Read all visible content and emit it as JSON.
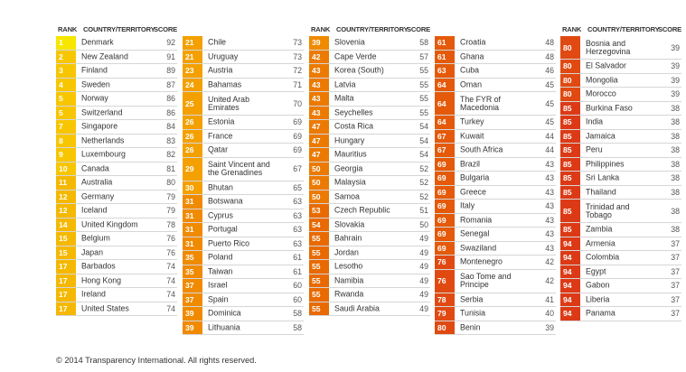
{
  "headers": {
    "rank": "RANK",
    "country": "COUNTRY/TERRITORY",
    "score": "SCORE"
  },
  "colors": {
    "rank_1": "#f6e600",
    "rank_2_10": "#f7c600",
    "rank_11_20": "#f5b800",
    "rank_21_30": "#f3a000",
    "rank_31_40": "#f08a00",
    "rank_41_50": "#ec7a00",
    "rank_51_60": "#e86a00",
    "rank_61_70": "#e45a0a",
    "rank_71_80": "#e04a12",
    "rank_81_94": "#dc3a16"
  },
  "columns": [
    {
      "rows": [
        {
          "rank": "1",
          "country": "Denmark",
          "score": "92"
        },
        {
          "rank": "2",
          "country": "New Zealand",
          "score": "91"
        },
        {
          "rank": "3",
          "country": "Finland",
          "score": "89"
        },
        {
          "rank": "4",
          "country": "Sweden",
          "score": "87"
        },
        {
          "rank": "5",
          "country": "Norway",
          "score": "86"
        },
        {
          "rank": "5",
          "country": "Switzerland",
          "score": "86"
        },
        {
          "rank": "7",
          "country": "Singapore",
          "score": "84"
        },
        {
          "rank": "8",
          "country": "Netherlands",
          "score": "83"
        },
        {
          "rank": "9",
          "country": "Luxembourg",
          "score": "82"
        },
        {
          "rank": "10",
          "country": "Canada",
          "score": "81"
        },
        {
          "rank": "11",
          "country": "Australia",
          "score": "80"
        },
        {
          "rank": "12",
          "country": "Germany",
          "score": "79"
        },
        {
          "rank": "12",
          "country": "Iceland",
          "score": "79"
        },
        {
          "rank": "14",
          "country": "United Kingdom",
          "score": "78"
        },
        {
          "rank": "15",
          "country": "Belgium",
          "score": "76"
        },
        {
          "rank": "15",
          "country": "Japan",
          "score": "76"
        },
        {
          "rank": "17",
          "country": "Barbados",
          "score": "74"
        },
        {
          "rank": "17",
          "country": "Hong Kong",
          "score": "74"
        },
        {
          "rank": "17",
          "country": "Ireland",
          "score": "74"
        },
        {
          "rank": "17",
          "country": "United States",
          "score": "74"
        }
      ]
    },
    {
      "rows": [
        {
          "rank": "21",
          "country": "Chile",
          "score": "73"
        },
        {
          "rank": "21",
          "country": "Uruguay",
          "score": "73"
        },
        {
          "rank": "23",
          "country": "Austria",
          "score": "72"
        },
        {
          "rank": "24",
          "country": "Bahamas",
          "score": "71"
        },
        {
          "rank": "25",
          "country": "United Arab Emirates",
          "score": "70"
        },
        {
          "rank": "26",
          "country": "Estonia",
          "score": "69"
        },
        {
          "rank": "26",
          "country": "France",
          "score": "69"
        },
        {
          "rank": "26",
          "country": "Qatar",
          "score": "69"
        },
        {
          "rank": "29",
          "country": "Saint Vincent and the Grenadines",
          "score": "67"
        },
        {
          "rank": "30",
          "country": "Bhutan",
          "score": "65"
        },
        {
          "rank": "31",
          "country": "Botswana",
          "score": "63"
        },
        {
          "rank": "31",
          "country": "Cyprus",
          "score": "63"
        },
        {
          "rank": "31",
          "country": "Portugal",
          "score": "63"
        },
        {
          "rank": "31",
          "country": "Puerto Rico",
          "score": "63"
        },
        {
          "rank": "35",
          "country": "Poland",
          "score": "61"
        },
        {
          "rank": "35",
          "country": "Taiwan",
          "score": "61"
        },
        {
          "rank": "37",
          "country": "Israel",
          "score": "60"
        },
        {
          "rank": "37",
          "country": "Spain",
          "score": "60"
        },
        {
          "rank": "39",
          "country": "Dominica",
          "score": "58"
        },
        {
          "rank": "39",
          "country": "Lithuania",
          "score": "58"
        }
      ]
    },
    {
      "rows": [
        {
          "rank": "39",
          "country": "Slovenia",
          "score": "58"
        },
        {
          "rank": "42",
          "country": "Cape Verde",
          "score": "57"
        },
        {
          "rank": "43",
          "country": "Korea (South)",
          "score": "55"
        },
        {
          "rank": "43",
          "country": "Latvia",
          "score": "55"
        },
        {
          "rank": "43",
          "country": "Malta",
          "score": "55"
        },
        {
          "rank": "43",
          "country": "Seychelles",
          "score": "55"
        },
        {
          "rank": "47",
          "country": "Costa Rica",
          "score": "54"
        },
        {
          "rank": "47",
          "country": "Hungary",
          "score": "54"
        },
        {
          "rank": "47",
          "country": "Mauritius",
          "score": "54"
        },
        {
          "rank": "50",
          "country": "Georgia",
          "score": "52"
        },
        {
          "rank": "50",
          "country": "Malaysia",
          "score": "52"
        },
        {
          "rank": "50",
          "country": "Samoa",
          "score": "52"
        },
        {
          "rank": "53",
          "country": "Czech Republic",
          "score": "51"
        },
        {
          "rank": "54",
          "country": "Slovakia",
          "score": "50"
        },
        {
          "rank": "55",
          "country": "Bahrain",
          "score": "49"
        },
        {
          "rank": "55",
          "country": "Jordan",
          "score": "49"
        },
        {
          "rank": "55",
          "country": "Lesotho",
          "score": "49"
        },
        {
          "rank": "55",
          "country": "Namibia",
          "score": "49"
        },
        {
          "rank": "55",
          "country": "Rwanda",
          "score": "49"
        },
        {
          "rank": "55",
          "country": "Saudi Arabia",
          "score": "49"
        }
      ]
    },
    {
      "rows": [
        {
          "rank": "61",
          "country": "Croatia",
          "score": "48"
        },
        {
          "rank": "61",
          "country": "Ghana",
          "score": "48"
        },
        {
          "rank": "63",
          "country": "Cuba",
          "score": "46"
        },
        {
          "rank": "64",
          "country": "Oman",
          "score": "45"
        },
        {
          "rank": "64",
          "country": "The FYR of Macedonia",
          "score": "45"
        },
        {
          "rank": "64",
          "country": "Turkey",
          "score": "45"
        },
        {
          "rank": "67",
          "country": "Kuwait",
          "score": "44"
        },
        {
          "rank": "67",
          "country": "South Africa",
          "score": "44"
        },
        {
          "rank": "69",
          "country": "Brazil",
          "score": "43"
        },
        {
          "rank": "69",
          "country": "Bulgaria",
          "score": "43"
        },
        {
          "rank": "69",
          "country": "Greece",
          "score": "43"
        },
        {
          "rank": "69",
          "country": "Italy",
          "score": "43"
        },
        {
          "rank": "69",
          "country": "Romania",
          "score": "43"
        },
        {
          "rank": "69",
          "country": "Senegal",
          "score": "43"
        },
        {
          "rank": "69",
          "country": "Swaziland",
          "score": "43"
        },
        {
          "rank": "76",
          "country": "Montenegro",
          "score": "42"
        },
        {
          "rank": "76",
          "country": "Sao Tome and Principe",
          "score": "42"
        },
        {
          "rank": "78",
          "country": "Serbia",
          "score": "41"
        },
        {
          "rank": "79",
          "country": "Tunisia",
          "score": "40"
        },
        {
          "rank": "80",
          "country": "Benin",
          "score": "39"
        }
      ]
    },
    {
      "rows": [
        {
          "rank": "80",
          "country": "Bosnia and Herzegovina",
          "score": "39"
        },
        {
          "rank": "80",
          "country": "El Salvador",
          "score": "39"
        },
        {
          "rank": "80",
          "country": "Mongolia",
          "score": "39"
        },
        {
          "rank": "80",
          "country": "Morocco",
          "score": "39"
        },
        {
          "rank": "85",
          "country": "Burkina Faso",
          "score": "38"
        },
        {
          "rank": "85",
          "country": "India",
          "score": "38"
        },
        {
          "rank": "85",
          "country": "Jamaica",
          "score": "38"
        },
        {
          "rank": "85",
          "country": "Peru",
          "score": "38"
        },
        {
          "rank": "85",
          "country": "Philippines",
          "score": "38"
        },
        {
          "rank": "85",
          "country": "Sri Lanka",
          "score": "38"
        },
        {
          "rank": "85",
          "country": "Thailand",
          "score": "38"
        },
        {
          "rank": "85",
          "country": "Trinidad and Tobago",
          "score": "38"
        },
        {
          "rank": "85",
          "country": "Zambia",
          "score": "38"
        },
        {
          "rank": "94",
          "country": "Armenia",
          "score": "37"
        },
        {
          "rank": "94",
          "country": "Colombia",
          "score": "37"
        },
        {
          "rank": "94",
          "country": "Egypt",
          "score": "37"
        },
        {
          "rank": "94",
          "country": "Gabon",
          "score": "37"
        },
        {
          "rank": "94",
          "country": "Liberia",
          "score": "37"
        },
        {
          "rank": "94",
          "country": "Panama",
          "score": "37"
        }
      ]
    }
  ],
  "footer": {
    "copyright": "© 2014 Transparency International. All rights reserved."
  }
}
